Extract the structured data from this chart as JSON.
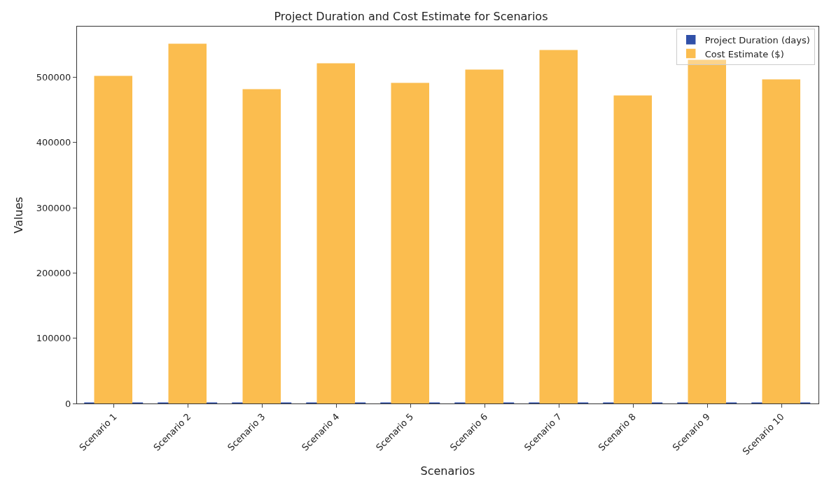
{
  "chart_data": {
    "type": "bar",
    "title": "Project Duration and Cost Estimate for Scenarios",
    "xlabel": "Scenarios",
    "ylabel": "Values",
    "categories": [
      "Scenario 1",
      "Scenario 2",
      "Scenario 3",
      "Scenario 4",
      "Scenario 5",
      "Scenario 6",
      "Scenario 7",
      "Scenario 8",
      "Scenario 9",
      "Scenario 10"
    ],
    "series": [
      {
        "name": "Project Duration (days)",
        "color": "#3050a8",
        "values": [
          0,
          0,
          0,
          0,
          0,
          0,
          0,
          0,
          0,
          0
        ]
      },
      {
        "name": "Cost Estimate ($)",
        "color": "#fbbd4f",
        "values": [
          500000,
          550000,
          480000,
          520000,
          490000,
          510000,
          540000,
          470000,
          525000,
          495000
        ]
      }
    ],
    "ylim": [
      0,
      577500
    ],
    "yticks": [
      0,
      100000,
      200000,
      300000,
      400000,
      500000
    ],
    "grid": false,
    "legend": "top right"
  }
}
